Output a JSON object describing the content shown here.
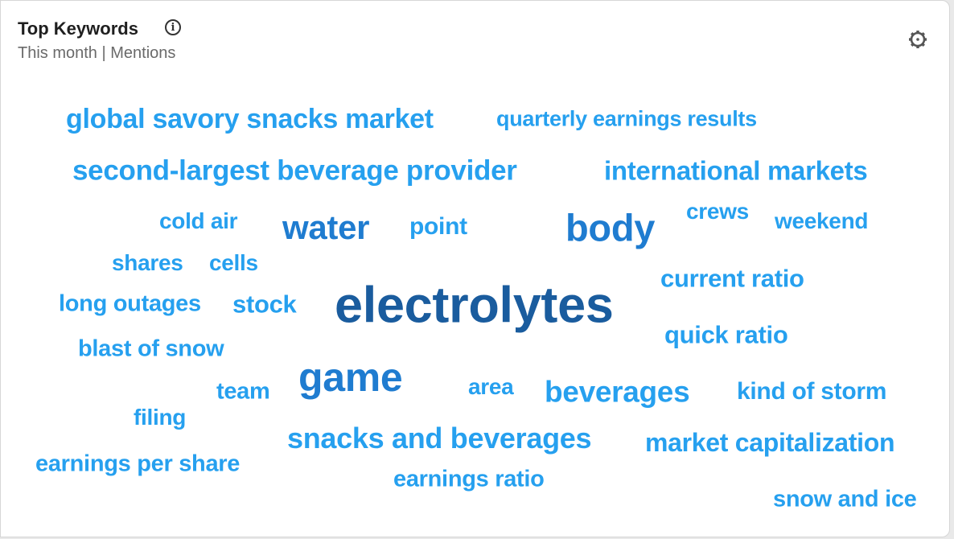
{
  "widget": {
    "title": "Top Keywords",
    "subtitle": "This month | Mentions",
    "icons": {
      "info": "info-circle-icon",
      "settings": "gear-icon"
    }
  },
  "colors": {
    "top": "#1a5c9e",
    "high": "#1f7cd0",
    "normal": "#26a0ef"
  },
  "keywords": [
    {
      "text": "global savory snacks market",
      "tier": "normal"
    },
    {
      "text": "quarterly earnings results",
      "tier": "normal"
    },
    {
      "text": "second-largest beverage provider",
      "tier": "normal"
    },
    {
      "text": "international markets",
      "tier": "normal"
    },
    {
      "text": "cold air",
      "tier": "normal"
    },
    {
      "text": "water",
      "tier": "high"
    },
    {
      "text": "point",
      "tier": "normal"
    },
    {
      "text": "body",
      "tier": "high"
    },
    {
      "text": "crews",
      "tier": "normal"
    },
    {
      "text": "weekend",
      "tier": "normal"
    },
    {
      "text": "shares",
      "tier": "normal"
    },
    {
      "text": "cells",
      "tier": "normal"
    },
    {
      "text": "current ratio",
      "tier": "normal"
    },
    {
      "text": "long outages",
      "tier": "normal"
    },
    {
      "text": "stock",
      "tier": "normal"
    },
    {
      "text": "electrolytes",
      "tier": "top"
    },
    {
      "text": "quick ratio",
      "tier": "normal"
    },
    {
      "text": "blast of snow",
      "tier": "normal"
    },
    {
      "text": "game",
      "tier": "high"
    },
    {
      "text": "team",
      "tier": "normal"
    },
    {
      "text": "area",
      "tier": "normal"
    },
    {
      "text": "beverages",
      "tier": "normal"
    },
    {
      "text": "kind of storm",
      "tier": "normal"
    },
    {
      "text": "filing",
      "tier": "normal"
    },
    {
      "text": "snacks and beverages",
      "tier": "normal"
    },
    {
      "text": "market capitalization",
      "tier": "normal"
    },
    {
      "text": "earnings per share",
      "tier": "normal"
    },
    {
      "text": "earnings ratio",
      "tier": "normal"
    },
    {
      "text": "snow and ice",
      "tier": "normal"
    }
  ]
}
